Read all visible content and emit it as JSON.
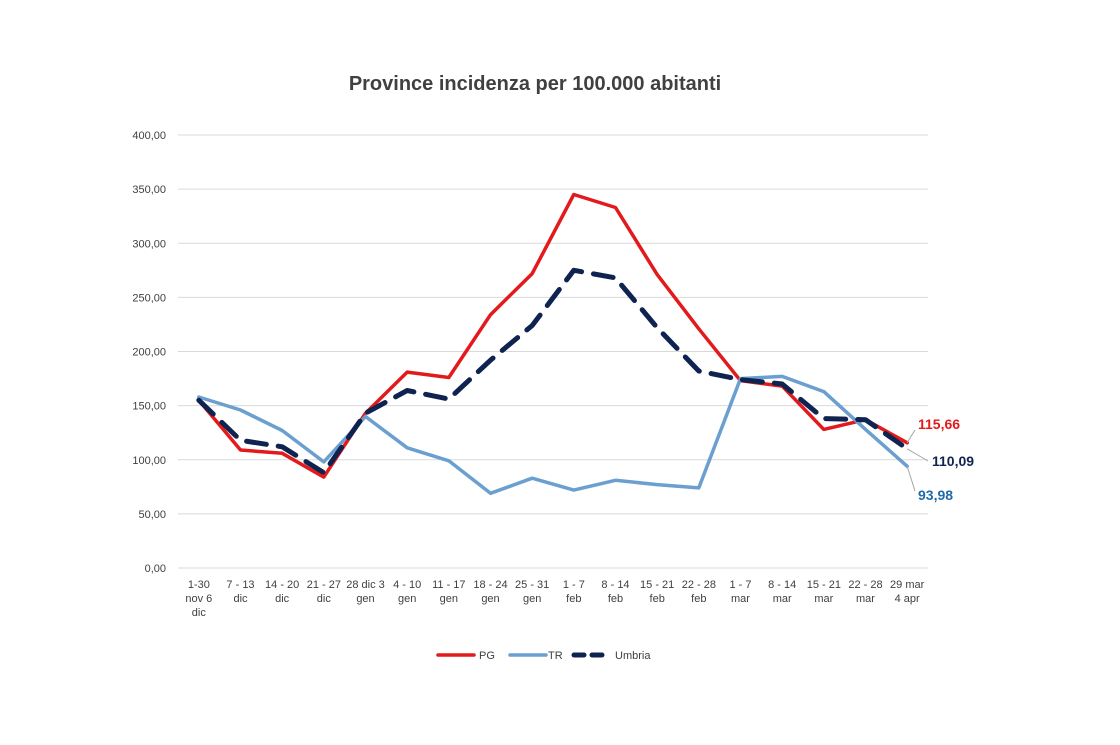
{
  "chart_data": {
    "type": "line",
    "title": "Province incidenza per 100.000 abitanti",
    "xlabel": "",
    "ylabel": "",
    "ylim": [
      0,
      400
    ],
    "yticks": [
      "0,00",
      "50,00",
      "100,00",
      "150,00",
      "200,00",
      "250,00",
      "300,00",
      "350,00",
      "400,00"
    ],
    "grid": true,
    "legend_position": "bottom",
    "categories": [
      [
        "1-30",
        "nov 6",
        "dic"
      ],
      [
        "7 - 13",
        "dic"
      ],
      [
        "14 - 20",
        "dic"
      ],
      [
        "21 - 27",
        "dic"
      ],
      [
        "28 dic 3",
        "gen"
      ],
      [
        "4 - 10",
        "gen"
      ],
      [
        "11 - 17",
        "gen"
      ],
      [
        "18 - 24",
        "gen"
      ],
      [
        "25 - 31",
        "gen"
      ],
      [
        "1 - 7",
        "feb"
      ],
      [
        "8 - 14",
        "feb"
      ],
      [
        "15 - 21",
        "feb"
      ],
      [
        "22 - 28",
        "feb"
      ],
      [
        "1 - 7",
        "mar"
      ],
      [
        "8 - 14",
        "mar"
      ],
      [
        "15 - 21",
        "mar"
      ],
      [
        "22 - 28",
        "mar"
      ],
      [
        "29 mar",
        "4 apr"
      ]
    ],
    "series": [
      {
        "name": "PG",
        "color": "#e31a1c",
        "dash": "solid",
        "values": [
          155,
          109,
          106,
          84,
          143,
          181,
          176,
          234,
          272,
          345,
          333,
          271,
          221,
          173,
          168,
          128,
          137,
          115.66
        ],
        "end_label": "115,66"
      },
      {
        "name": "TR",
        "color": "#6a9fd0",
        "dash": "solid",
        "values": [
          158,
          146,
          127,
          98,
          140,
          111,
          99,
          69,
          83,
          72,
          81,
          77,
          74,
          175,
          177,
          163,
          128,
          93.98
        ],
        "end_label": "93,98"
      },
      {
        "name": "Umbria",
        "color": "#0f2350",
        "dash": "dashed",
        "values": [
          155,
          118,
          112,
          88,
          143,
          164,
          156,
          192,
          224,
          275,
          268,
          222,
          182,
          174,
          170,
          138,
          137,
          110.09
        ],
        "end_label": "110,09"
      }
    ],
    "end_label_colors": [
      "#e31a1c",
      "#1f6aa8",
      "#0f2350"
    ]
  }
}
